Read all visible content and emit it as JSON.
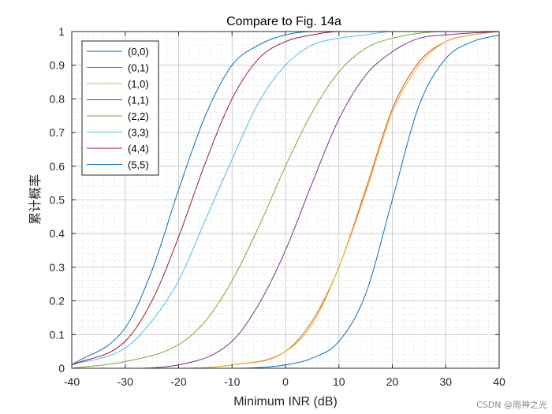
{
  "chart_data": {
    "type": "line",
    "title": "Compare to Fig. 14a",
    "xlabel": "Minimum INR (dB)",
    "ylabel": "累计概率",
    "xlim": [
      -40,
      40
    ],
    "ylim": [
      0,
      1
    ],
    "xticks": [
      -40,
      -30,
      -20,
      -10,
      0,
      10,
      20,
      30,
      40
    ],
    "yticks": [
      0,
      0.1,
      0.2,
      0.3,
      0.4,
      0.5,
      0.6,
      0.7,
      0.8,
      0.9,
      1
    ],
    "grid": "major and minor",
    "legend_position": "top-left",
    "series": [
      {
        "name": "(0,0)",
        "color": "#0072BD",
        "x": [
          -40,
          -30,
          -20,
          -10,
          0,
          5,
          10,
          15,
          20,
          25,
          30,
          35,
          40
        ],
        "y": [
          0,
          0,
          0,
          0,
          0.01,
          0.03,
          0.08,
          0.22,
          0.5,
          0.78,
          0.92,
          0.97,
          0.99
        ]
      },
      {
        "name": "(0,1)",
        "color": "#D95319",
        "x": [
          -40,
          -30,
          -20,
          -10,
          0,
          5,
          10,
          15,
          20,
          25,
          30,
          35,
          40
        ],
        "y": [
          0,
          0,
          0,
          0.01,
          0.05,
          0.14,
          0.3,
          0.53,
          0.77,
          0.91,
          0.97,
          0.99,
          1
        ]
      },
      {
        "name": "(1,0)",
        "color": "#EDB120",
        "x": [
          -40,
          -30,
          -20,
          -10,
          0,
          5,
          10,
          15,
          20,
          25,
          30,
          35,
          40
        ],
        "y": [
          0,
          0,
          0,
          0.01,
          0.05,
          0.13,
          0.3,
          0.52,
          0.76,
          0.9,
          0.97,
          0.99,
          1
        ]
      },
      {
        "name": "(1,1)",
        "color": "#7E2F8E",
        "x": [
          -40,
          -30,
          -20,
          -10,
          -5,
          0,
          5,
          10,
          15,
          20,
          25,
          30,
          40
        ],
        "y": [
          0,
          0,
          0.01,
          0.08,
          0.19,
          0.35,
          0.55,
          0.74,
          0.87,
          0.94,
          0.98,
          0.99,
          1
        ]
      },
      {
        "name": "(2,2)",
        "color": "#77AC30",
        "x": [
          -40,
          -30,
          -20,
          -15,
          -10,
          -5,
          0,
          5,
          10,
          15,
          20,
          30,
          40
        ],
        "y": [
          0,
          0.02,
          0.07,
          0.14,
          0.26,
          0.42,
          0.6,
          0.76,
          0.88,
          0.95,
          0.98,
          1,
          1
        ]
      },
      {
        "name": "(3,3)",
        "color": "#4DBEEE",
        "x": [
          -40,
          -30,
          -25,
          -20,
          -15,
          -10,
          -5,
          0,
          5,
          10,
          15,
          20,
          30
        ],
        "y": [
          0.01,
          0.06,
          0.14,
          0.26,
          0.44,
          0.62,
          0.79,
          0.9,
          0.96,
          0.98,
          0.99,
          1,
          1
        ]
      },
      {
        "name": "(4,4)",
        "color": "#A2142F",
        "x": [
          -40,
          -30,
          -25,
          -20,
          -15,
          -10,
          -5,
          0,
          5,
          10,
          20
        ],
        "y": [
          0.01,
          0.08,
          0.2,
          0.39,
          0.61,
          0.8,
          0.92,
          0.97,
          0.99,
          1,
          1
        ]
      },
      {
        "name": "(5,5)",
        "color": "#0072BD",
        "x": [
          -40,
          -30,
          -25,
          -20,
          -15,
          -10,
          -5,
          0,
          5,
          10,
          20
        ],
        "y": [
          0.01,
          0.12,
          0.29,
          0.53,
          0.75,
          0.9,
          0.96,
          0.99,
          1,
          1,
          1
        ]
      }
    ]
  },
  "watermark": "CSDN @雨神之光"
}
